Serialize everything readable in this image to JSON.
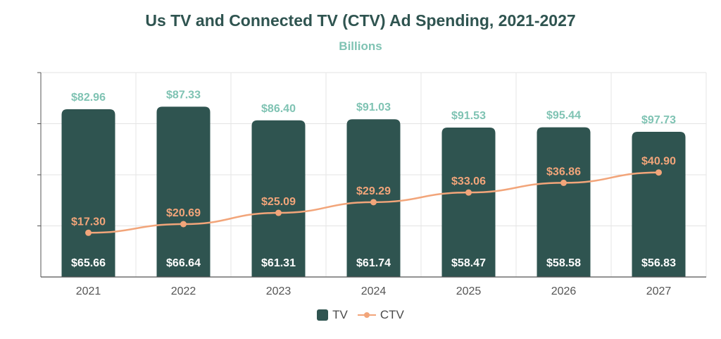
{
  "chart_data": {
    "type": "bar",
    "title": "Us TV and Connected TV (CTV) Ad Spending, 2021-2027",
    "subtitle": "Billions",
    "categories": [
      "2021",
      "2022",
      "2023",
      "2024",
      "2025",
      "2026",
      "2027"
    ],
    "series": [
      {
        "name": "TV",
        "type": "bar",
        "color": "#2f5450",
        "values": [
          65.66,
          66.64,
          61.31,
          61.74,
          58.47,
          58.58,
          56.83
        ],
        "labels": [
          "$65.66",
          "$66.64",
          "$61.31",
          "$61.74",
          "$58.47",
          "$58.58",
          "$56.83"
        ]
      },
      {
        "name": "CTV",
        "type": "line",
        "color": "#f2a57a",
        "values": [
          17.3,
          20.69,
          25.09,
          29.29,
          33.06,
          36.86,
          40.9
        ],
        "labels": [
          "$17.30",
          "$20.69",
          "$25.09",
          "$29.29",
          "$33.06",
          "$36.86",
          "$40.90"
        ]
      }
    ],
    "totals": {
      "color": "#7fc3b3",
      "values": [
        82.96,
        87.33,
        86.4,
        91.03,
        91.53,
        95.44,
        97.73
      ],
      "labels": [
        "$82.96",
        "$87.33",
        "$86.40",
        "$91.03",
        "$91.53",
        "$95.44",
        "$97.73"
      ]
    },
    "ylim": [
      0,
      80
    ],
    "grid": true,
    "legend_position": "bottom-center"
  }
}
